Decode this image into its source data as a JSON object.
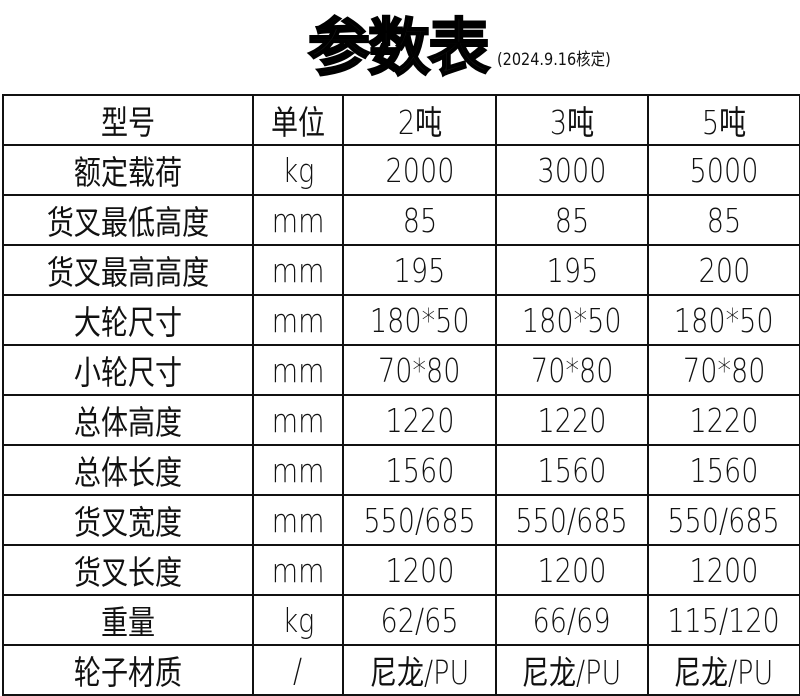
{
  "title": "参数表",
  "subtitle": "(2024.9.16核定)",
  "table": {
    "header": [
      "型号",
      "单位",
      "2吨",
      "3吨",
      "5吨"
    ],
    "rows": [
      [
        "额定载荷",
        "kg",
        "2000",
        "3000",
        "5000"
      ],
      [
        "货叉最低高度",
        "mm",
        "85",
        "85",
        "85"
      ],
      [
        "货叉最高高度",
        "mm",
        "195",
        "195",
        "200"
      ],
      [
        "大轮尺寸",
        "mm",
        "180*50",
        "180*50",
        "180*50"
      ],
      [
        "小轮尺寸",
        "mm",
        "70*80",
        "70*80",
        "70*80"
      ],
      [
        "总体高度",
        "mm",
        "1220",
        "1220",
        "1220"
      ],
      [
        "总体长度",
        "mm",
        "1560",
        "1560",
        "1560"
      ],
      [
        "货叉宽度",
        "mm",
        "550/685",
        "550/685",
        "550/685"
      ],
      [
        "货叉长度",
        "mm",
        "1200",
        "1200",
        "1200"
      ],
      [
        "重量",
        "kg",
        "62/65",
        "66/69",
        "115/120"
      ],
      [
        "轮子材质",
        "/",
        "尼龙/PU",
        "尼龙/PU",
        "尼龙/PU"
      ]
    ]
  }
}
